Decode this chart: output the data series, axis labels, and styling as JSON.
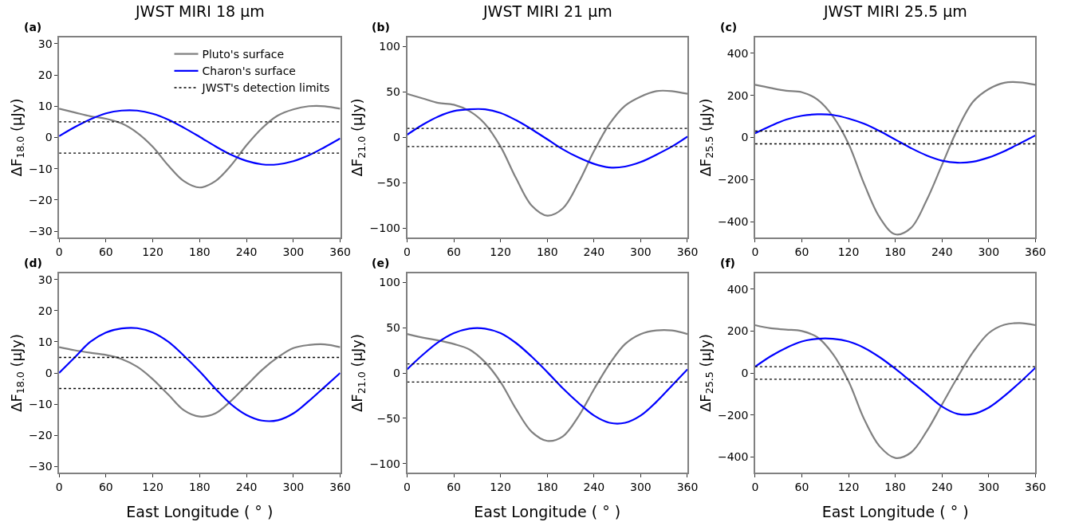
{
  "chart_data": [
    {
      "type": "line",
      "title": "JWST MIRI 18 μm",
      "ylabel": "ΔF$_{18.0}$ (μJy)",
      "annotations": [
        "(a)"
      ],
      "x": [
        0,
        20,
        40,
        60,
        80,
        100,
        120,
        140,
        160,
        180,
        200,
        220,
        240,
        260,
        280,
        300,
        320,
        340,
        360
      ],
      "xlim": [
        0,
        360
      ],
      "xticks": [
        0,
        60,
        120,
        180,
        240,
        300,
        360
      ],
      "ylim": [
        -32,
        32
      ],
      "yticks": [
        -30,
        -20,
        -10,
        0,
        10,
        20,
        30
      ],
      "legend": "top right",
      "line_style": "solid",
      "series": [
        {
          "name": "Pluto's surface",
          "color": "#808080",
          "values": [
            9.2,
            8,
            6.8,
            6,
            4.5,
            1.5,
            -3,
            -9,
            -14,
            -16,
            -14,
            -9,
            -2.5,
            3,
            7,
            9,
            10,
            10,
            9.2
          ]
        },
        {
          "name": "Charon's surface",
          "color": "#0000ff",
          "values": [
            0.4,
            3.3,
            5.8,
            7.7,
            8.6,
            8.6,
            7.6,
            5.7,
            3.1,
            0.2,
            -2.8,
            -5.5,
            -7.5,
            -8.6,
            -8.6,
            -7.6,
            -5.7,
            -3.1,
            -0.3
          ]
        }
      ],
      "ref_lines": [
        {
          "axis": "y",
          "value": 5,
          "label": "JWST's detection limits",
          "color": "#000000",
          "line_style": "dotted"
        },
        {
          "axis": "y",
          "value": -5,
          "color": "#000000",
          "line_style": "dotted"
        }
      ]
    },
    {
      "type": "line",
      "title": "JWST MIRI 21 μm",
      "ylabel": "ΔF$_{21.0}$ (μJy)",
      "annotations": [
        "(b)"
      ],
      "x": [
        0,
        20,
        40,
        60,
        80,
        100,
        120,
        140,
        160,
        180,
        200,
        220,
        240,
        260,
        280,
        300,
        320,
        340,
        360
      ],
      "xlim": [
        0,
        360
      ],
      "xticks": [
        0,
        60,
        120,
        180,
        240,
        300,
        360
      ],
      "ylim": [
        -110,
        110
      ],
      "yticks": [
        -100,
        -50,
        0,
        50,
        100
      ],
      "line_style": "solid",
      "series": [
        {
          "color": "#808080",
          "values": [
            48,
            43,
            38,
            36,
            29,
            15,
            -10,
            -45,
            -75,
            -86,
            -78,
            -50,
            -15,
            15,
            35,
            45,
            51,
            51,
            48
          ]
        },
        {
          "color": "#0000ff",
          "values": [
            3,
            14,
            23,
            29,
            31,
            31,
            27,
            19,
            9,
            -2,
            -13,
            -22,
            -29,
            -33,
            -32,
            -27,
            -19,
            -10,
            1
          ]
        }
      ],
      "ref_lines": [
        {
          "axis": "y",
          "value": 10,
          "color": "#000000",
          "line_style": "dotted"
        },
        {
          "axis": "y",
          "value": -10,
          "color": "#000000",
          "line_style": "dotted"
        }
      ]
    },
    {
      "type": "line",
      "title": "JWST MIRI 25.5 μm",
      "ylabel": "ΔF$_{25.5}$ (μJy)",
      "annotations": [
        "(c)"
      ],
      "x": [
        0,
        20,
        40,
        60,
        80,
        100,
        120,
        140,
        160,
        180,
        200,
        220,
        240,
        260,
        280,
        300,
        320,
        340,
        360
      ],
      "xlim": [
        0,
        360
      ],
      "xticks": [
        0,
        60,
        120,
        180,
        240,
        300,
        360
      ],
      "ylim": [
        -475,
        475
      ],
      "yticks": [
        -400,
        -200,
        0,
        200,
        400
      ],
      "line_style": "solid",
      "series": [
        {
          "color": "#808080",
          "values": [
            250,
            235,
            222,
            215,
            180,
            100,
            -30,
            -220,
            -380,
            -460,
            -430,
            -300,
            -130,
            40,
            170,
            230,
            260,
            262,
            250
          ]
        },
        {
          "color": "#0000ff",
          "values": [
            20,
            55,
            85,
            103,
            110,
            107,
            90,
            65,
            30,
            -10,
            -50,
            -85,
            -110,
            -120,
            -115,
            -95,
            -65,
            -28,
            10
          ]
        }
      ],
      "ref_lines": [
        {
          "axis": "y",
          "value": 30,
          "color": "#000000",
          "line_style": "dotted"
        },
        {
          "axis": "y",
          "value": -30,
          "color": "#000000",
          "line_style": "dotted"
        }
      ]
    },
    {
      "type": "line",
      "xlabel": "East Longitude ( ° )",
      "ylabel": "ΔF$_{18.0}$ (μJy)",
      "annotations": [
        "(d)"
      ],
      "x": [
        0,
        20,
        40,
        60,
        80,
        100,
        120,
        140,
        160,
        180,
        200,
        220,
        240,
        260,
        280,
        300,
        320,
        340,
        360
      ],
      "xlim": [
        0,
        360
      ],
      "xticks": [
        0,
        60,
        120,
        180,
        240,
        300,
        360
      ],
      "ylim": [
        -32,
        32
      ],
      "yticks": [
        -30,
        -20,
        -10,
        0,
        10,
        20,
        30
      ],
      "line_style": "solid",
      "series": [
        {
          "color": "#808080",
          "values": [
            8.3,
            7.3,
            6.5,
            5.8,
            4.5,
            2,
            -2,
            -7,
            -12,
            -14,
            -13,
            -9,
            -4,
            1,
            5,
            8,
            9,
            9.2,
            8.3
          ]
        },
        {
          "color": "#0000ff",
          "values": [
            0,
            5,
            10,
            13,
            14.3,
            14.4,
            13,
            10,
            5.5,
            0.5,
            -5,
            -10,
            -13.5,
            -15.3,
            -15.2,
            -13,
            -9,
            -4.5,
            0
          ]
        }
      ],
      "ref_lines": [
        {
          "axis": "y",
          "value": 5,
          "color": "#000000",
          "line_style": "dotted"
        },
        {
          "axis": "y",
          "value": -5,
          "color": "#000000",
          "line_style": "dotted"
        }
      ]
    },
    {
      "type": "line",
      "xlabel": "East Longitude ( ° )",
      "ylabel": "ΔF$_{21.0}$ (μJy)",
      "annotations": [
        "(e)"
      ],
      "x": [
        0,
        20,
        40,
        60,
        80,
        100,
        120,
        140,
        160,
        180,
        200,
        220,
        240,
        260,
        280,
        300,
        320,
        340,
        360
      ],
      "xlim": [
        0,
        360
      ],
      "xticks": [
        0,
        60,
        120,
        180,
        240,
        300,
        360
      ],
      "ylim": [
        -110,
        110
      ],
      "yticks": [
        -100,
        -50,
        0,
        50,
        100
      ],
      "line_style": "solid",
      "series": [
        {
          "color": "#808080",
          "values": [
            43,
            39,
            36,
            32,
            26,
            12,
            -10,
            -40,
            -65,
            -75,
            -70,
            -48,
            -18,
            10,
            32,
            43,
            47,
            47,
            43
          ]
        },
        {
          "color": "#0000ff",
          "values": [
            4,
            20,
            34,
            44,
            49,
            49,
            44,
            33,
            18,
            1,
            -17,
            -33,
            -47,
            -55,
            -55,
            -47,
            -32,
            -14,
            4
          ]
        }
      ],
      "ref_lines": [
        {
          "axis": "y",
          "value": 10,
          "color": "#000000",
          "line_style": "dotted"
        },
        {
          "axis": "y",
          "value": -10,
          "color": "#000000",
          "line_style": "dotted"
        }
      ]
    },
    {
      "type": "line",
      "xlabel": "East Longitude ( ° )",
      "ylabel": "ΔF$_{25.5}$ (μJy)",
      "annotations": [
        "(f)"
      ],
      "x": [
        0,
        20,
        40,
        60,
        80,
        100,
        120,
        140,
        160,
        180,
        200,
        220,
        240,
        260,
        280,
        300,
        320,
        340,
        360
      ],
      "xlim": [
        0,
        360
      ],
      "xticks": [
        0,
        60,
        120,
        180,
        240,
        300,
        360
      ],
      "ylim": [
        -475,
        475
      ],
      "yticks": [
        -400,
        -200,
        0,
        200,
        400
      ],
      "line_style": "solid",
      "series": [
        {
          "color": "#808080",
          "values": [
            228,
            213,
            207,
            200,
            170,
            90,
            -40,
            -220,
            -350,
            -405,
            -380,
            -280,
            -150,
            -20,
            100,
            190,
            230,
            238,
            228
          ]
        },
        {
          "color": "#0000ff",
          "values": [
            30,
            80,
            120,
            150,
            163,
            163,
            150,
            120,
            75,
            20,
            -40,
            -100,
            -160,
            -195,
            -195,
            -165,
            -110,
            -45,
            25
          ]
        }
      ],
      "ref_lines": [
        {
          "axis": "y",
          "value": 30,
          "color": "#000000",
          "line_style": "dotted"
        },
        {
          "axis": "y",
          "value": -30,
          "color": "#000000",
          "line_style": "dotted"
        }
      ]
    }
  ]
}
